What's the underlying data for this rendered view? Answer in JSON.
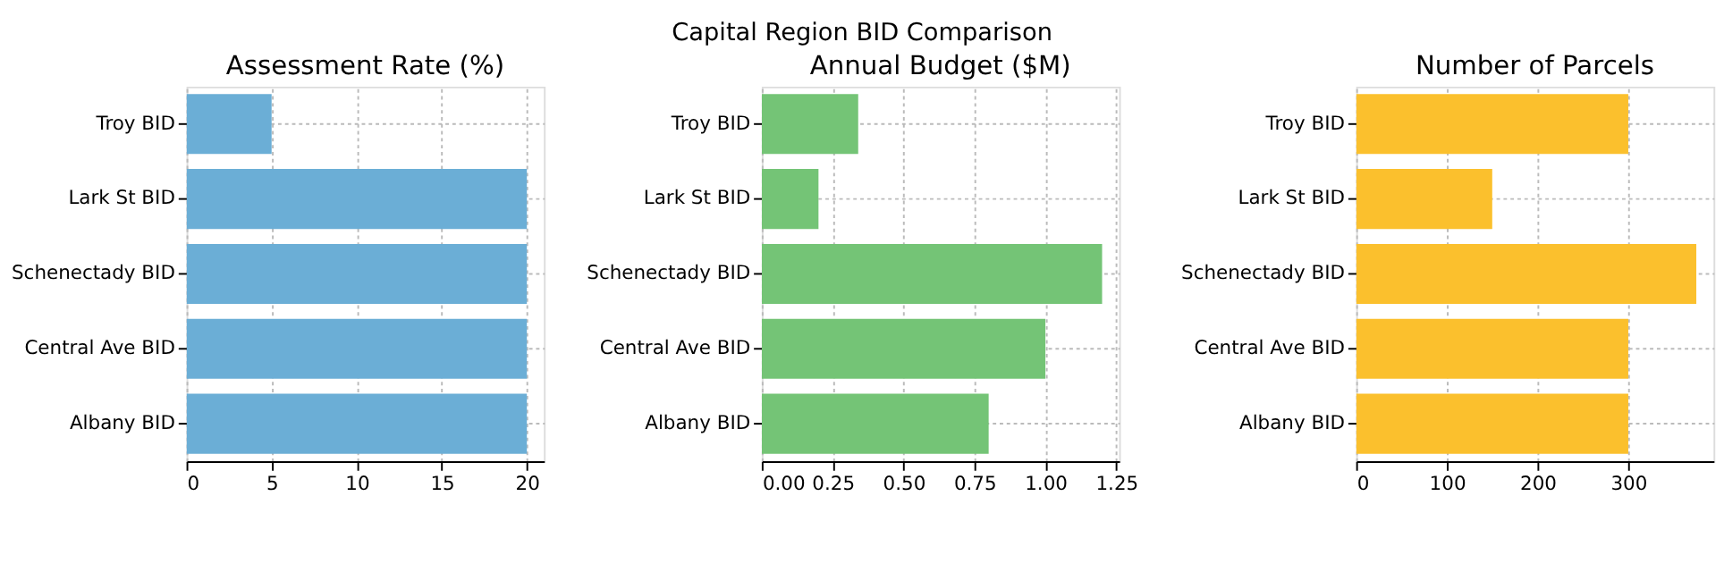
{
  "chart_data": [
    {
      "type": "bar",
      "orientation": "horizontal",
      "title": "Assessment Rate (%)",
      "annotations": [
        "Capital Region BID Comparison"
      ],
      "categories": [
        "Troy BID",
        "Lark St BID",
        "Schenectady BID",
        "Central Ave BID",
        "Albany BID"
      ],
      "values": [
        5,
        20,
        20,
        20,
        20
      ],
      "color": "#6baed6",
      "xlim": [
        0,
        21
      ],
      "xticks": [
        0,
        5,
        10,
        15,
        20
      ],
      "grid": true
    },
    {
      "type": "bar",
      "orientation": "horizontal",
      "title": "Annual Budget ($M)",
      "categories": [
        "Troy BID",
        "Lark St BID",
        "Schenectady BID",
        "Central Ave BID",
        "Albany BID"
      ],
      "values": [
        0.34,
        0.2,
        1.2,
        1.0,
        0.8
      ],
      "color": "#74c476",
      "xlim": [
        0,
        1.26
      ],
      "xticks": [
        {
          "value": 0,
          "label": "0.00"
        },
        0.25,
        {
          "value": 0.5,
          "label": "0.50"
        },
        0.75,
        {
          "value": 1,
          "label": "1.00"
        },
        1.25
      ],
      "grid": true
    },
    {
      "type": "bar",
      "orientation": "horizontal",
      "title": "Number of Parcels",
      "categories": [
        "Troy BID",
        "Lark St BID",
        "Schenectady BID",
        "Central Ave BID",
        "Albany BID"
      ],
      "values": [
        300,
        150,
        375,
        300,
        300
      ],
      "color": "#fbc02d",
      "xlim": [
        0,
        394
      ],
      "xticks": [
        0,
        100,
        200,
        300
      ],
      "grid": true
    }
  ]
}
